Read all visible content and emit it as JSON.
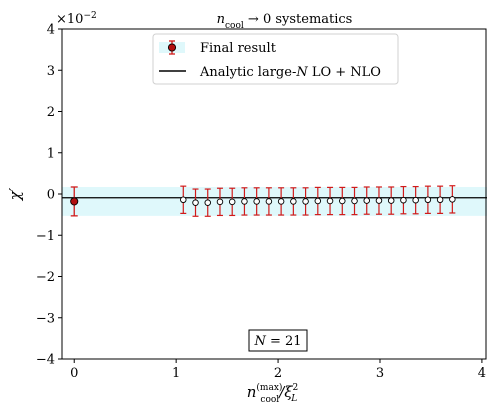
{
  "chart_data": {
    "type": "scatter",
    "title": "n_cool → 0 systematics",
    "title_parts": {
      "sym": "n",
      "sub": "cool",
      "rest": " → 0 systematics"
    },
    "xlabel_parts": {
      "sym": "n",
      "sup": "(max)",
      "sub": "cool",
      "rest": "/ξ",
      "rest_sup": "2",
      "rest_sub": "L"
    },
    "ylabel": "χ′",
    "y_scale_note": "×10",
    "y_scale_exp": "−2",
    "xlim": [
      -0.12,
      4.05
    ],
    "ylim": [
      -4,
      4
    ],
    "x_ticks": [
      0,
      1,
      2,
      3,
      4
    ],
    "x_tick_labels": [
      "0",
      "1",
      "2",
      "3",
      "4"
    ],
    "y_ticks": [
      -4,
      -3,
      -2,
      -1,
      0,
      1,
      2,
      3,
      4
    ],
    "y_tick_labels": [
      "−4",
      "−3",
      "−2",
      "−1",
      "0",
      "1",
      "2",
      "3",
      "4"
    ],
    "annotation": "N = 21",
    "annotation_parts": {
      "sym": "N",
      "rest": " = 21"
    },
    "legend_position": "top-center",
    "legend": [
      {
        "name": "Final result"
      },
      {
        "name_parts": {
          "a": "Analytic large-",
          "sym": "N",
          "b": " LO + NLO"
        },
        "name": "Analytic large-N LO + NLO"
      }
    ],
    "final_result": {
      "x": 0,
      "y": -0.18,
      "err": 0.35
    },
    "analytic_line": {
      "y": -0.09
    },
    "band": {
      "y_low": -0.53,
      "y_high": 0.17
    },
    "series": [
      {
        "err": 0.33,
        "points": [
          [
            1.07,
            -0.14
          ],
          [
            1.19,
            -0.21
          ],
          [
            1.31,
            -0.21
          ],
          [
            1.43,
            -0.19
          ],
          [
            1.55,
            -0.19
          ],
          [
            1.67,
            -0.18
          ],
          [
            1.79,
            -0.18
          ],
          [
            1.91,
            -0.18
          ],
          [
            2.03,
            -0.18
          ],
          [
            2.15,
            -0.18
          ],
          [
            2.27,
            -0.18
          ],
          [
            2.39,
            -0.17
          ],
          [
            2.51,
            -0.17
          ],
          [
            2.63,
            -0.17
          ],
          [
            2.75,
            -0.17
          ],
          [
            2.87,
            -0.16
          ],
          [
            2.99,
            -0.16
          ],
          [
            3.11,
            -0.16
          ],
          [
            3.23,
            -0.15
          ],
          [
            3.35,
            -0.15
          ],
          [
            3.47,
            -0.14
          ],
          [
            3.59,
            -0.14
          ],
          [
            3.71,
            -0.13
          ]
        ]
      }
    ]
  },
  "colors": {
    "band": "#dff8fb",
    "error_bar": "#d11a1a",
    "final_marker": "#b01010",
    "line": "#000000",
    "axes": "#000000"
  }
}
